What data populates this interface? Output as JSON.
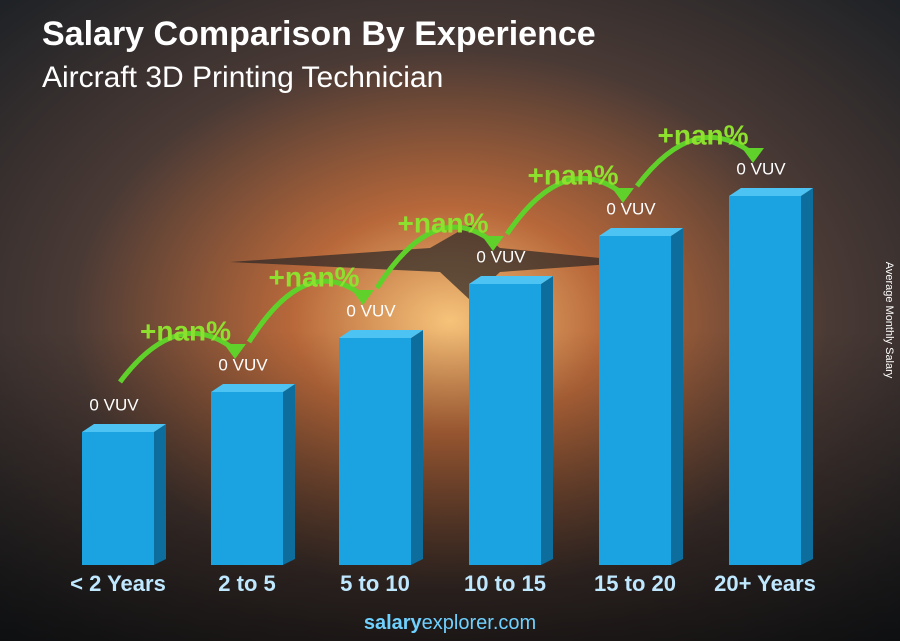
{
  "chart_data": {
    "type": "bar",
    "title": "Salary Comparison By Experience",
    "subtitle": "Aircraft 3D Printing Technician",
    "y_label": "Average Monthly Salary",
    "categories": [
      "< 2 Years",
      "2 to 5",
      "5 to 10",
      "10 to 15",
      "15 to 20",
      "20+ Years"
    ],
    "values": [
      0,
      0,
      0,
      0,
      0,
      0
    ],
    "value_labels": [
      "0 VUV",
      "0 VUV",
      "0 VUV",
      "0 VUV",
      "0 VUV",
      "0 VUV"
    ],
    "changes": [
      "+nan%",
      "+nan%",
      "+nan%",
      "+nan%",
      "+nan%"
    ],
    "color": "#1aa3e0",
    "website": [
      "salary",
      "explorer.com"
    ]
  }
}
